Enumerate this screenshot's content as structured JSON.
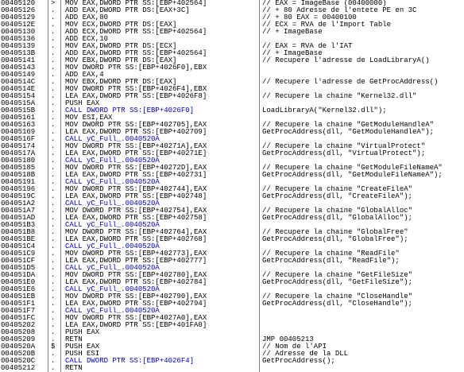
{
  "rows": [
    {
      "address": "00405120",
      "marker": ">",
      "instruction": "MOV EAX,DWORD PTR SS:[EBP+402564]",
      "comment": "// EAX = ImageBase (00400000)"
    },
    {
      "address": "00405126",
      "marker": ".",
      "instruction": "ADD EAX,DWORD PTR DS:[EAX+3C]",
      "comment": "// + 80 Adresse de l'entete PE en 3C"
    },
    {
      "address": "00405129",
      "marker": ".",
      "instruction": "ADD EAX,80",
      "comment": "// + 80 EAX = 00400100"
    },
    {
      "address": "0040512E",
      "marker": ".",
      "instruction": "MOV ECX,DWORD PTR DS:[EAX]",
      "comment": "// ECX = RVA de l'Import Table"
    },
    {
      "address": "00405130",
      "marker": ".",
      "instruction": "ADD ECX,DWORD PTR SS:[EBP+402564]",
      "comment": "// + ImageBase"
    },
    {
      "address": "00405136",
      "marker": ".",
      "instruction": "ADD ECX,10"
    },
    {
      "address": "00405139",
      "marker": ".",
      "instruction": "MOV EAX,DWORD PTR DS:[ECX]",
      "comment": "// EAX = RVA de l'IAT"
    },
    {
      "address": "0040513B",
      "marker": ".",
      "instruction": "ADD EAX,DWORD PTR SS:[EBP+402564]",
      "comment": "// + ImageBase"
    },
    {
      "address": "00405141",
      "marker": ".",
      "instruction": "MOV EBX,DWORD PTR DS:[EAX]",
      "comment": "// Recupere l'adresse de LoadLibraryA()"
    },
    {
      "address": "00405143",
      "marker": ".",
      "instruction": "MOV DWORD PTR SS:[EBP+4026F0],EBX"
    },
    {
      "address": "00405149",
      "marker": ".",
      "instruction": "ADD EAX,4"
    },
    {
      "address": "0040514C",
      "marker": ".",
      "instruction": "MOV EBX,DWORD PTR DS:[EAX]",
      "comment": "// Recupere l'adresse de GetProcAddress()"
    },
    {
      "address": "0040514E",
      "marker": ".",
      "instruction": "MOV DWORD PTR SS:[EBP+4026F4],EBX"
    },
    {
      "address": "00405154",
      "marker": ".",
      "instruction": "LEA EAX,DWORD PTR SS:[EBP+4026F8]",
      "comment": "// Recupere la chaine \"Kernel32.dll\""
    },
    {
      "address": "0040515A",
      "marker": ".",
      "instruction": "PUSH EAX"
    },
    {
      "address": "0040515B",
      "marker": ".",
      "instruction": "CALL DWORD PTR SS:[EBP+4026F0]",
      "comment": "LoadLibraryA(\"Kernel32.dll\");"
    },
    {
      "address": "00405161",
      "marker": ".",
      "instruction": "MOV ESI,EAX"
    },
    {
      "address": "00405163",
      "marker": ".",
      "instruction": "MOV DWORD PTR SS:[EBP+402705],EAX",
      "comment": "// Recupere la chaine \"GetModuleHandleA\""
    },
    {
      "address": "00405169",
      "marker": ".",
      "instruction": "LEA EAX,DWORD PTR SS:[EBP+402709]",
      "comment": "GetProcAddress(dll, \"GetModuleHandleA\");"
    },
    {
      "address": "0040516F",
      "marker": ".",
      "instruction": "CALL yC_Full_.0040520A"
    },
    {
      "address": "00405174",
      "marker": ".",
      "instruction": "MOV DWORD PTR SS:[EBP+40271A],EAX",
      "comment": "// Recupere la chaine \"VirtualProtect\""
    },
    {
      "address": "0040517A",
      "marker": ".",
      "instruction": "LEA EAX,DWORD PTR SS:[EBP+40271E]",
      "comment": "GetProcAddress(dll, \"VirtualProtect\");"
    },
    {
      "address": "00405180",
      "marker": ".",
      "instruction": "CALL yC_Full_.0040520A"
    },
    {
      "address": "00405185",
      "marker": ".",
      "instruction": "MOV DWORD PTR SS:[EBP+40272D],EAX",
      "comment": "// Recupere la chaine \"GetModuleFileNameA\""
    },
    {
      "address": "0040518B",
      "marker": ".",
      "instruction": "LEA EAX,DWORD PTR SS:[EBP+402731]",
      "comment": "GetProcAddress(dll, \"GetModuleFileNameA\");"
    },
    {
      "address": "00405191",
      "marker": ".",
      "instruction": "CALL yC_Full_.0040520A"
    },
    {
      "address": "00405196",
      "marker": ".",
      "instruction": "MOV DWORD PTR SS:[EBP+402744],EAX",
      "comment": "// Recupere la chaine \"CreateFileA\""
    },
    {
      "address": "0040519C",
      "marker": ".",
      "instruction": "LEA EAX,DWORD PTR SS:[EBP+402748]",
      "comment": "GetProcAddress(dll, \"CreateFileA\");"
    },
    {
      "address": "004051A2",
      "marker": ".",
      "instruction": "CALL yC_Full_.0040520A"
    },
    {
      "address": "004051A7",
      "marker": ".",
      "instruction": "MOV DWORD PTR SS:[EBP+402754],EAX",
      "comment": "// Recupere la chaine \"GlobalAlloc\""
    },
    {
      "address": "004051AD",
      "marker": ".",
      "instruction": "LEA EAX,DWORD PTR SS:[EBP+402758]",
      "comment": "GetProcAddress(dll, \"GlobalAlloc\");"
    },
    {
      "address": "004051B3",
      "marker": ".",
      "instruction": "CALL yC_Full_.0040520A"
    },
    {
      "address": "004051B8",
      "marker": ".",
      "instruction": "MOV DWORD PTR SS:[EBP+402764],EAX",
      "comment": "// Recupere la chaine \"GlobalFree\""
    },
    {
      "address": "004051BE",
      "marker": ".",
      "instruction": "LEA EAX,DWORD PTR SS:[EBP+402768]",
      "comment": "GetProcAddress(dll, \"GlobalFree\");"
    },
    {
      "address": "004051C4",
      "marker": ".",
      "instruction": "CALL yC_Full_.0040520A"
    },
    {
      "address": "004051C9",
      "marker": ".",
      "instruction": "MOV DWORD PTR SS:[EBP+402773],EAX",
      "comment": "// Recupere la chaine \"ReadFile\""
    },
    {
      "address": "004051CF",
      "marker": ".",
      "instruction": "LEA EAX,DWORD PTR SS:[EBP+402777]",
      "comment": "GetProcAddress(dll, \"ReadFile\");"
    },
    {
      "address": "004051D5",
      "marker": ".",
      "instruction": "CALL yC_Full_.0040520A"
    },
    {
      "address": "004051DA",
      "marker": ".",
      "instruction": "MOV DWORD PTR SS:[EBP+402780],EAX",
      "comment": "// Recupere la chaine \"GetFileSize\""
    },
    {
      "address": "004051E0",
      "marker": ".",
      "instruction": "LEA EAX,DWORD PTR SS:[EBP+402784]",
      "comment": "GetProcAddress(dll, \"GetFileSize\");"
    },
    {
      "address": "004051E6",
      "marker": ".",
      "instruction": "CALL yC_Full_.0040520A"
    },
    {
      "address": "004051EB",
      "marker": ".",
      "instruction": "MOV DWORD PTR SS:[EBP+402790],EAX",
      "comment": "// Recupere la chaine \"CloseHandle\""
    },
    {
      "address": "004051F1",
      "marker": ".",
      "instruction": "LEA EAX,DWORD PTR SS:[EBP+402794]",
      "comment": "GetProcAddress(dll, \"CloseHandle\");"
    },
    {
      "address": "004051F7",
      "marker": ".",
      "instruction": "CALL yC_Full_.0040520A"
    },
    {
      "address": "004051FC",
      "marker": ".",
      "instruction": "MOV DWORD PTR SS:[EBP+4027A0],EAX"
    },
    {
      "address": "00405202",
      "marker": ".",
      "instruction": "LEA EAX,DWORD PTR SS:[EBP+401FA0]"
    },
    {
      "address": "00405208",
      "marker": ".",
      "instruction": "PUSH EAX"
    },
    {
      "address": "00405209",
      "marker": ".",
      "instruction": "RETN",
      "comment": "JMP 00405213"
    },
    {
      "address": "0040520A",
      "marker": "$",
      "instruction": "PUSH EAX",
      "comment": "// Nom de l'API"
    },
    {
      "address": "0040520B",
      "marker": ".",
      "instruction": "PUSH ESI",
      "comment": "// Adresse de la DLL"
    },
    {
      "address": "0040520C",
      "marker": ".",
      "instruction": "CALL DWORD PTR SS:[EBP+4026F4]",
      "comment": "GetProcAddress();"
    },
    {
      "address": "00405212",
      "marker": ".",
      "instruction": "RETN"
    }
  ]
}
